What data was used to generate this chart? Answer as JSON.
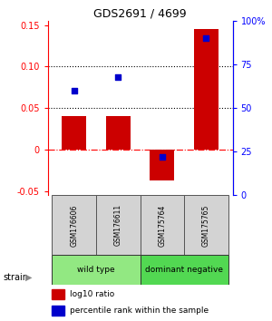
{
  "title": "GDS2691 / 4699",
  "samples": [
    "GSM176606",
    "GSM176611",
    "GSM175764",
    "GSM175765"
  ],
  "log10_ratio": [
    0.04,
    0.04,
    -0.037,
    0.145
  ],
  "percentile_rank": [
    60,
    68,
    22,
    90
  ],
  "groups": [
    {
      "label": "wild type",
      "samples": [
        0,
        1
      ],
      "color": "#92E882"
    },
    {
      "label": "dominant negative",
      "samples": [
        2,
        3
      ],
      "color": "#52D852"
    }
  ],
  "bar_color": "#CC0000",
  "dot_color": "#0000CC",
  "ylim_left": [
    -0.055,
    0.155
  ],
  "ylim_right": [
    0,
    100
  ],
  "yticks_left": [
    -0.05,
    0.0,
    0.05,
    0.1,
    0.15
  ],
  "ytick_labels_left": [
    "-0.05",
    "0",
    "0.05",
    "0.10",
    "0.15"
  ],
  "yticks_right": [
    0,
    25,
    50,
    75,
    100
  ],
  "ytick_labels_right": [
    "0",
    "25",
    "50",
    "75",
    "100%"
  ],
  "hlines_dotted": [
    0.05,
    0.1
  ],
  "hline_dashed_color": "red",
  "bar_width": 0.55,
  "background_color": "#ffffff",
  "legend_red_label": "log10 ratio",
  "legend_blue_label": "percentile rank within the sample"
}
